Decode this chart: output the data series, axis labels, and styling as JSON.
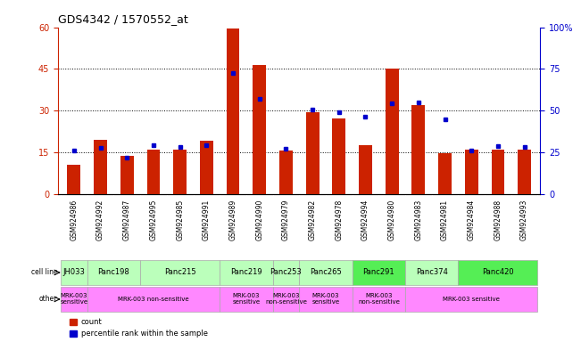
{
  "title": "GDS4342 / 1570552_at",
  "samples": [
    "GSM924986",
    "GSM924992",
    "GSM924987",
    "GSM924995",
    "GSM924985",
    "GSM924991",
    "GSM924989",
    "GSM924990",
    "GSM924979",
    "GSM924982",
    "GSM924978",
    "GSM924994",
    "GSM924980",
    "GSM924983",
    "GSM924981",
    "GSM924984",
    "GSM924988",
    "GSM924993"
  ],
  "counts": [
    10.5,
    19.5,
    13.5,
    16.0,
    16.0,
    19.0,
    59.5,
    46.5,
    15.5,
    29.5,
    27.0,
    17.5,
    45.0,
    32.0,
    14.5,
    16.0,
    16.0,
    16.0
  ],
  "percentiles": [
    26.0,
    27.5,
    21.5,
    29.0,
    28.0,
    29.0,
    72.5,
    57.0,
    27.0,
    50.5,
    49.0,
    46.5,
    54.5,
    55.0,
    44.5,
    26.0,
    28.5,
    28.0
  ],
  "left_ylim": [
    0,
    60
  ],
  "right_ylim": [
    0,
    100
  ],
  "left_yticks": [
    0,
    15,
    30,
    45,
    60
  ],
  "right_yticks": [
    0,
    25,
    50,
    75,
    100
  ],
  "right_yticklabels": [
    "0",
    "25",
    "50",
    "75",
    "100%"
  ],
  "bar_color": "#cc2200",
  "dot_color": "#0000cc",
  "bar_width": 0.5,
  "cell_line_data": [
    {
      "label": "JH033",
      "start": 0,
      "end": 1,
      "color": "#bbffbb"
    },
    {
      "label": "Panc198",
      "start": 1,
      "end": 3,
      "color": "#bbffbb"
    },
    {
      "label": "Panc215",
      "start": 3,
      "end": 6,
      "color": "#bbffbb"
    },
    {
      "label": "Panc219",
      "start": 6,
      "end": 8,
      "color": "#bbffbb"
    },
    {
      "label": "Panc253",
      "start": 8,
      "end": 9,
      "color": "#bbffbb"
    },
    {
      "label": "Panc265",
      "start": 9,
      "end": 11,
      "color": "#bbffbb"
    },
    {
      "label": "Panc291",
      "start": 11,
      "end": 13,
      "color": "#55ee55"
    },
    {
      "label": "Panc374",
      "start": 13,
      "end": 15,
      "color": "#bbffbb"
    },
    {
      "label": "Panc420",
      "start": 15,
      "end": 18,
      "color": "#55ee55"
    }
  ],
  "other_data": [
    {
      "label": "MRK-003\nsensitive",
      "start": 0,
      "end": 1,
      "color": "#ff88ff"
    },
    {
      "label": "MRK-003 non-sensitive",
      "start": 1,
      "end": 6,
      "color": "#ff88ff"
    },
    {
      "label": "MRK-003\nsensitive",
      "start": 6,
      "end": 8,
      "color": "#ff88ff"
    },
    {
      "label": "MRK-003\nnon-sensitive",
      "start": 8,
      "end": 9,
      "color": "#ff88ff"
    },
    {
      "label": "MRK-003\nsensitive",
      "start": 9,
      "end": 11,
      "color": "#ff88ff"
    },
    {
      "label": "MRK-003\nnon-sensitive",
      "start": 11,
      "end": 13,
      "color": "#ff88ff"
    },
    {
      "label": "MRK-003 sensitive",
      "start": 13,
      "end": 18,
      "color": "#ff88ff"
    }
  ],
  "dotted_gridlines": [
    15,
    30,
    45
  ],
  "background_color": "#ffffff",
  "axis_color_left": "#cc2200",
  "axis_color_right": "#0000cc",
  "xtick_bg": "#cccccc"
}
